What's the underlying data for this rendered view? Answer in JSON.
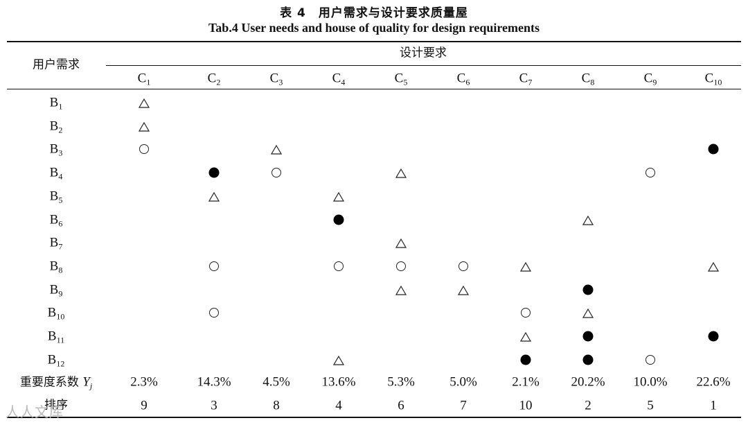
{
  "title_cn": "表 4　用户需求与设计要求质量屋",
  "title_en": "Tab.4 User needs and house of quality for design requirements",
  "header": {
    "row_header": "用户需求",
    "group_header": "设计要求",
    "columns": [
      {
        "base": "C",
        "sub": "1"
      },
      {
        "base": "C",
        "sub": "2"
      },
      {
        "base": "C",
        "sub": "3"
      },
      {
        "base": "C",
        "sub": "4"
      },
      {
        "base": "C",
        "sub": "5"
      },
      {
        "base": "C",
        "sub": "6"
      },
      {
        "base": "C",
        "sub": "7"
      },
      {
        "base": "C",
        "sub": "8"
      },
      {
        "base": "C",
        "sub": "9"
      },
      {
        "base": "C",
        "sub": "10"
      }
    ]
  },
  "rows": [
    {
      "base": "B",
      "sub": "1",
      "cells": [
        "tri",
        "",
        "",
        "",
        "",
        "",
        "",
        "",
        "",
        ""
      ]
    },
    {
      "base": "B",
      "sub": "2",
      "cells": [
        "tri",
        "",
        "",
        "",
        "",
        "",
        "",
        "",
        "",
        ""
      ]
    },
    {
      "base": "B",
      "sub": "3",
      "cells": [
        "circle",
        "",
        "tri",
        "",
        "",
        "",
        "",
        "",
        "",
        "dot"
      ]
    },
    {
      "base": "B",
      "sub": "4",
      "cells": [
        "",
        "dot",
        "circle",
        "",
        "tri",
        "",
        "",
        "",
        "circle",
        ""
      ]
    },
    {
      "base": "B",
      "sub": "5",
      "cells": [
        "",
        "tri",
        "",
        "tri",
        "",
        "",
        "",
        "",
        "",
        ""
      ]
    },
    {
      "base": "B",
      "sub": "6",
      "cells": [
        "",
        "",
        "",
        "dot",
        "",
        "",
        "",
        "tri",
        "",
        ""
      ]
    },
    {
      "base": "B",
      "sub": "7",
      "cells": [
        "",
        "",
        "",
        "",
        "tri",
        "",
        "",
        "",
        "",
        ""
      ]
    },
    {
      "base": "B",
      "sub": "8",
      "cells": [
        "",
        "circle",
        "",
        "circle",
        "circle",
        "circle",
        "tri",
        "",
        "",
        "tri"
      ]
    },
    {
      "base": "B",
      "sub": "9",
      "cells": [
        "",
        "",
        "",
        "",
        "tri",
        "tri",
        "",
        "dot",
        "",
        ""
      ]
    },
    {
      "base": "B",
      "sub": "10",
      "cells": [
        "",
        "circle",
        "",
        "",
        "",
        "",
        "circle",
        "tri",
        "",
        ""
      ]
    },
    {
      "base": "B",
      "sub": "11",
      "cells": [
        "",
        "",
        "",
        "",
        "",
        "",
        "tri",
        "dot",
        "",
        "dot"
      ]
    },
    {
      "base": "B",
      "sub": "12",
      "cells": [
        "",
        "",
        "",
        "tri",
        "",
        "",
        "dot",
        "dot",
        "circle",
        ""
      ]
    }
  ],
  "importance": {
    "label_cn": "重要度系数",
    "label_symbol": "Y",
    "label_sub": "j",
    "values": [
      "2.3%",
      "14.3%",
      "4.5%",
      "13.6%",
      "5.3%",
      "5.0%",
      "2.1%",
      "20.2%",
      "10.0%",
      "22.6%"
    ]
  },
  "ranking": {
    "label": "排序",
    "values": [
      "9",
      "3",
      "8",
      "4",
      "6",
      "7",
      "10",
      "2",
      "5",
      "1"
    ]
  },
  "watermark": "人人文库"
}
